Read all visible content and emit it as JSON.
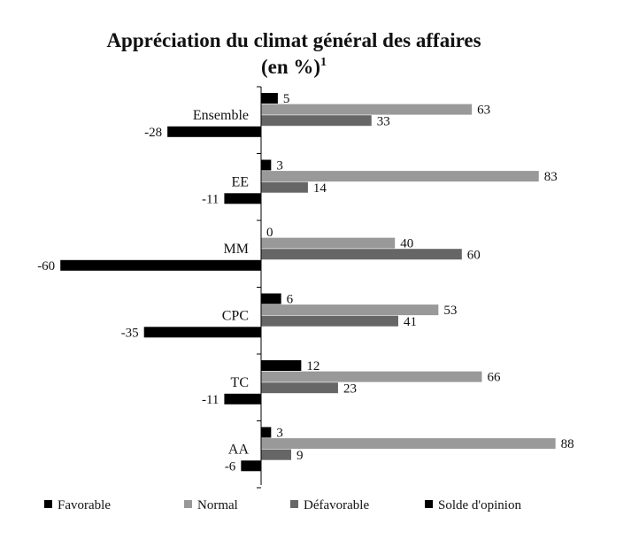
{
  "chart_data": {
    "type": "bar",
    "orientation": "horizontal",
    "title": "Appréciation du climat général des affaires",
    "subtitle_main": "(en %)",
    "subtitle_sup": "1",
    "categories": [
      "Ensemble",
      "EE",
      "MM",
      "CPC",
      "TC",
      "AA"
    ],
    "series": [
      {
        "name": "Favorable",
        "values": [
          5,
          3,
          0,
          6,
          12,
          3
        ],
        "color": "#000000"
      },
      {
        "name": "Normal",
        "values": [
          63,
          83,
          40,
          53,
          66,
          88
        ],
        "color": "#999999"
      },
      {
        "name": "Défavorable",
        "values": [
          33,
          14,
          60,
          41,
          23,
          9
        ],
        "color": "#666666"
      },
      {
        "name": "Solde d'opinion",
        "values": [
          -28,
          -11,
          -60,
          -35,
          -11,
          -6
        ],
        "color": "#000000"
      }
    ],
    "xlim": [
      -60,
      88
    ],
    "legend_position": "bottom",
    "grid": false
  }
}
